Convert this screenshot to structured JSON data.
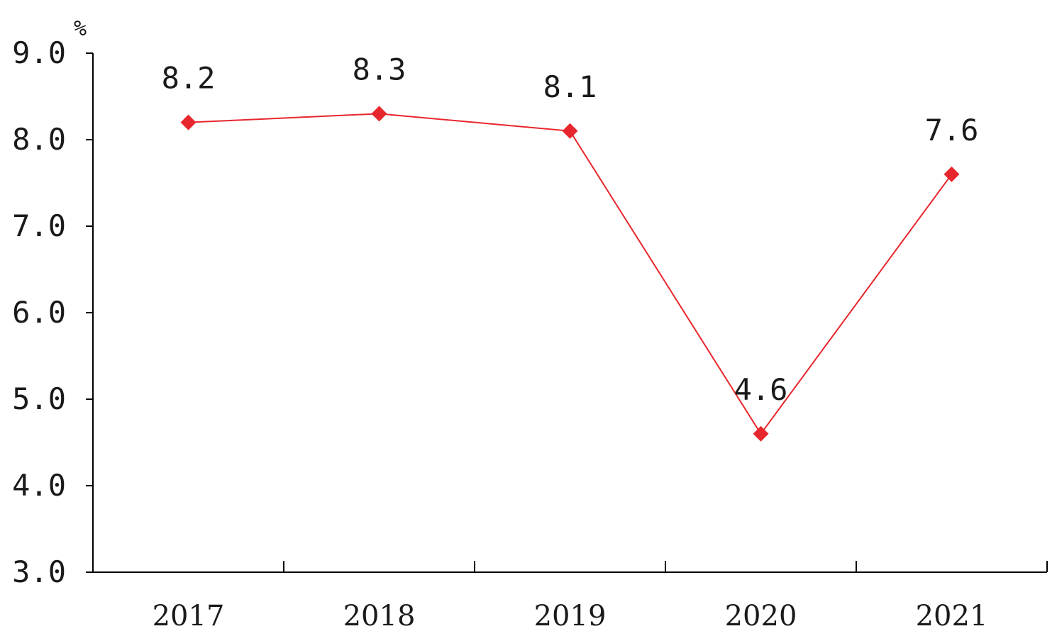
{
  "chart_data": {
    "type": "line",
    "categories": [
      "2017",
      "2018",
      "2019",
      "2020",
      "2021"
    ],
    "series": [
      {
        "values": [
          8.2,
          8.3,
          8.1,
          4.6,
          7.6
        ],
        "color": "#e8262d"
      }
    ],
    "data_labels": [
      "8.2",
      "8.3",
      "8.1",
      "4.6",
      "7.6"
    ],
    "y_unit": "%",
    "ylim": [
      3.0,
      9.0
    ],
    "y_ticks": [
      3.0,
      4.0,
      5.0,
      6.0,
      7.0,
      8.0,
      9.0
    ],
    "y_tick_labels": [
      "3.0",
      "4.0",
      "5.0",
      "6.0",
      "7.0",
      "8.0",
      "9.0"
    ],
    "grid": false,
    "legend": "none",
    "marker": "diamond"
  }
}
